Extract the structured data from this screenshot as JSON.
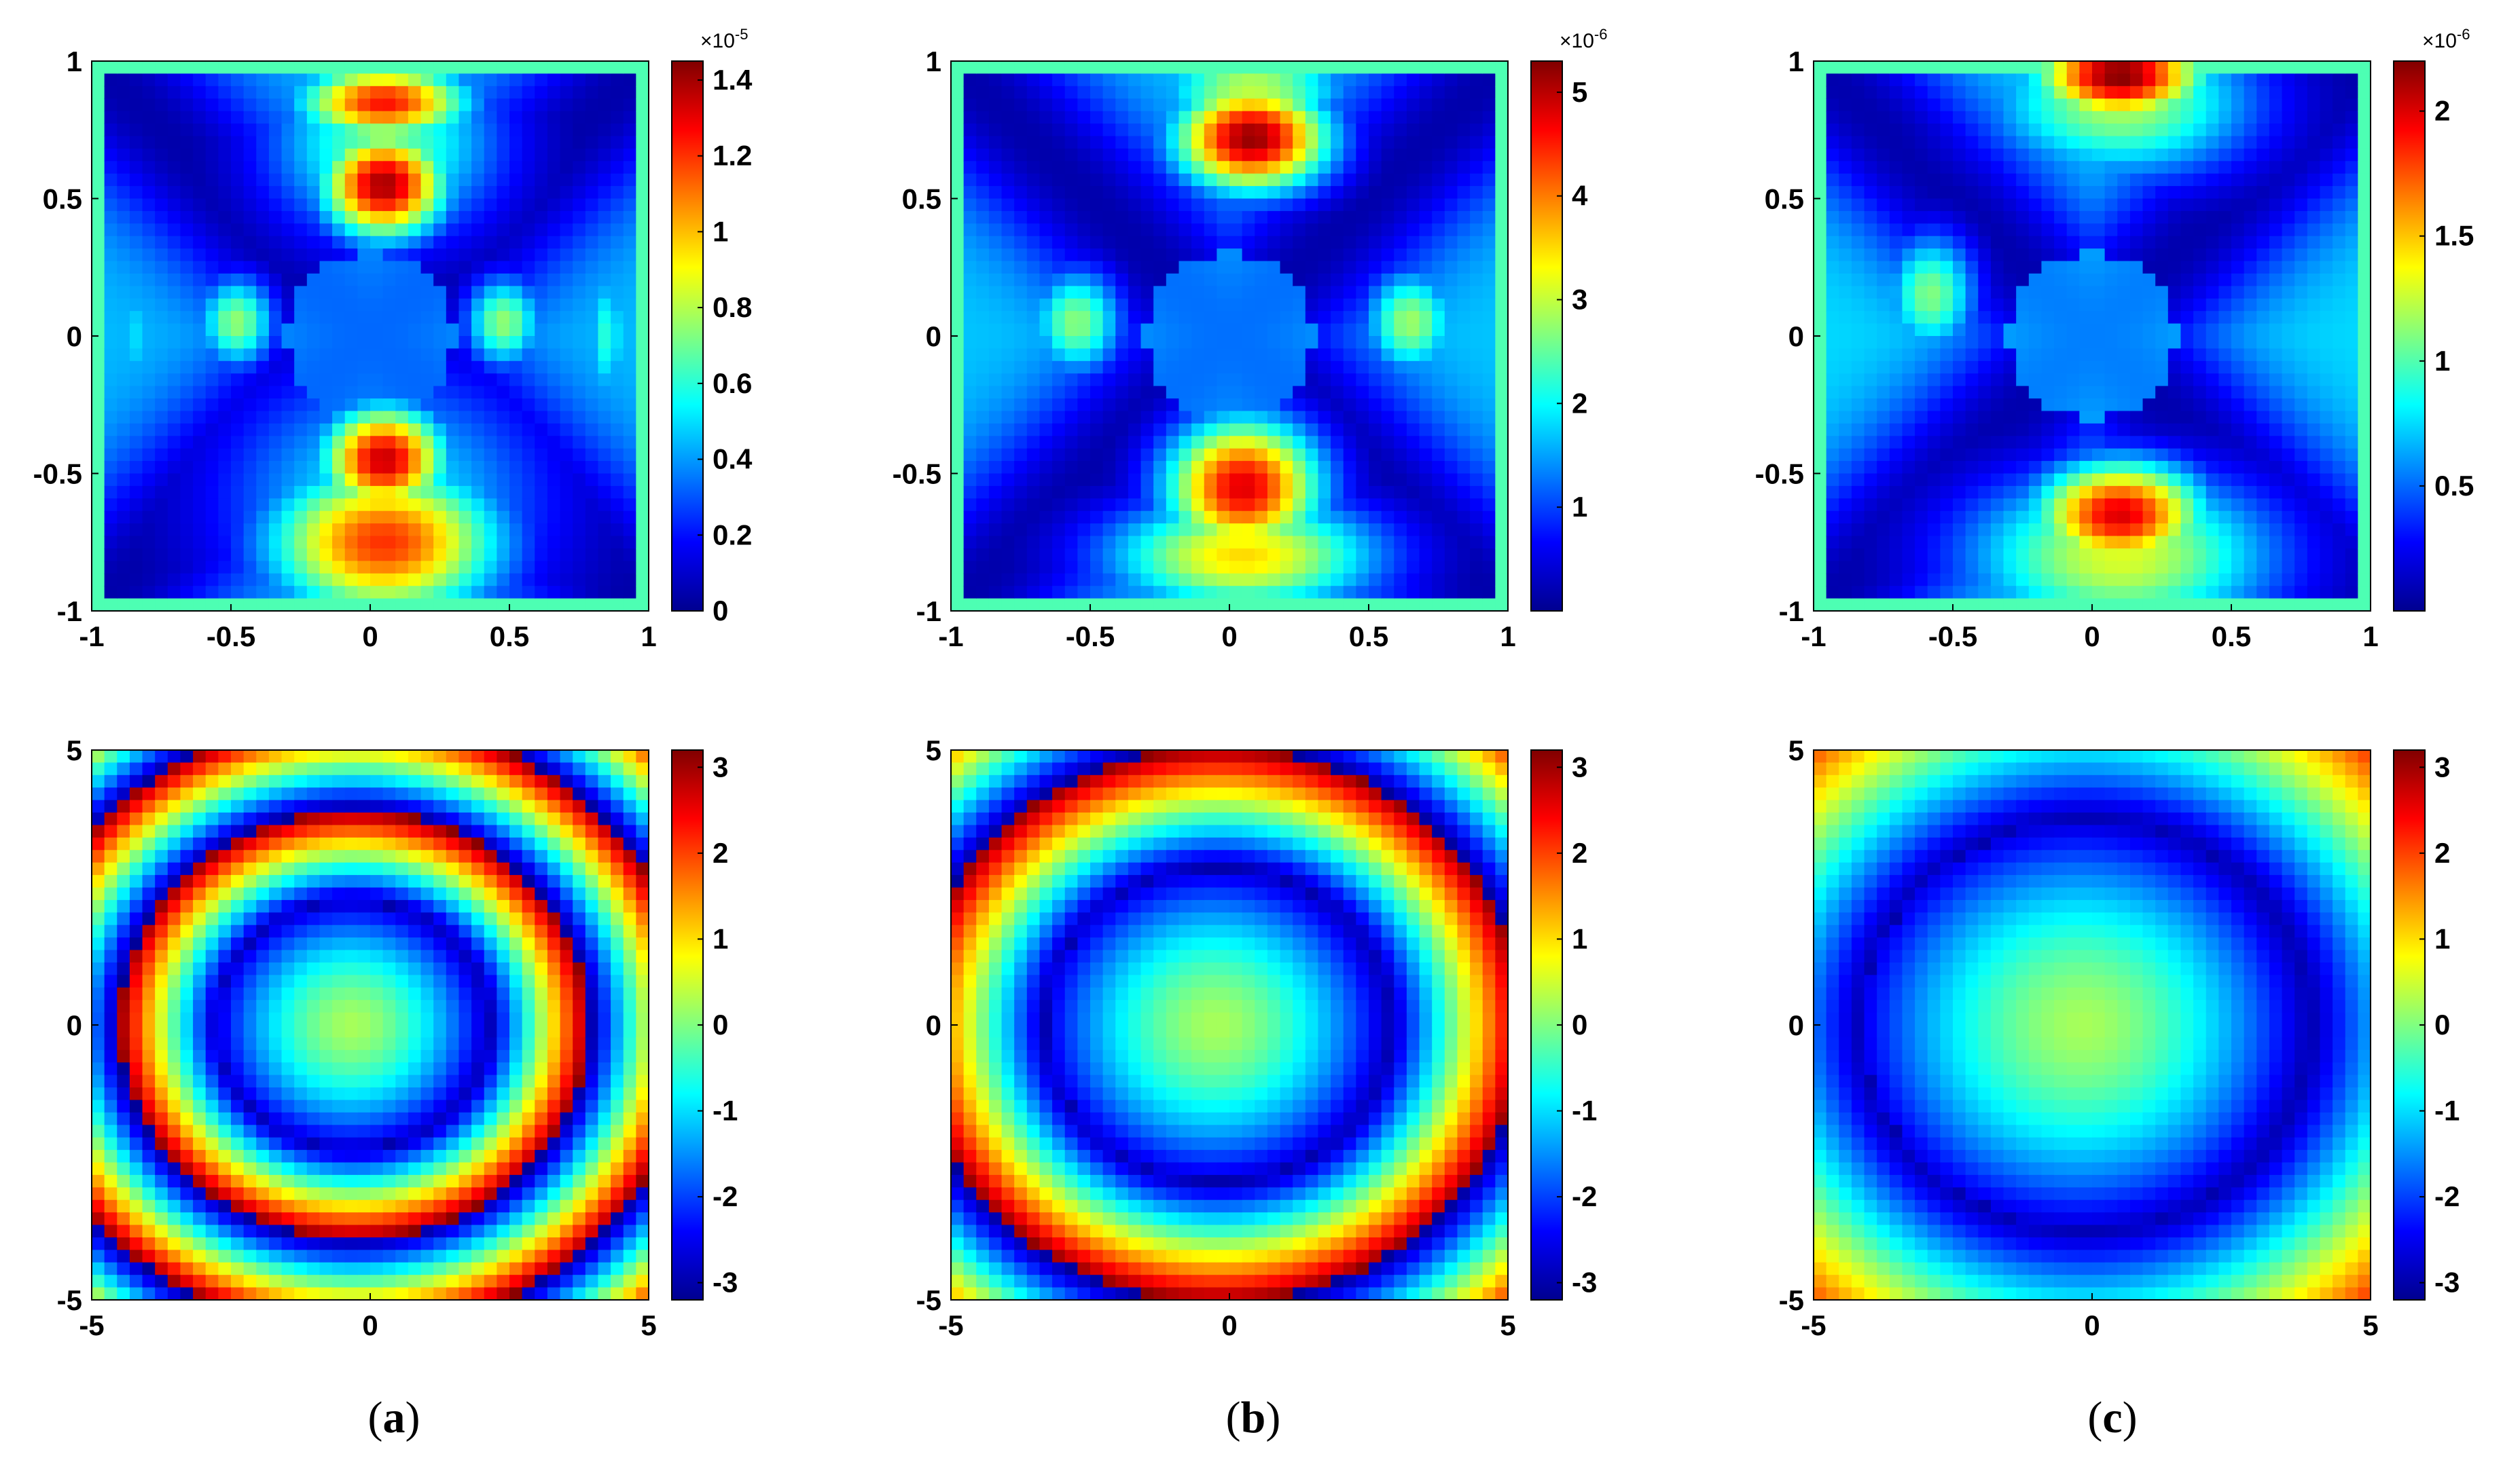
{
  "colormap": [
    "#00008f",
    "#0000ff",
    "#0080ff",
    "#00ffff",
    "#80ff80",
    "#ffff00",
    "#ff8000",
    "#ff0000",
    "#800000"
  ],
  "chart_data": [
    {
      "type": "heatmap",
      "panel": "a",
      "row": "top",
      "xlim": [
        -1,
        1
      ],
      "ylim": [
        -1,
        1
      ],
      "xticks": [
        "-1",
        "-0.5",
        "0",
        "0.5",
        "1"
      ],
      "yticks": [
        "1",
        "0.5",
        "0",
        "-0.5",
        "-1"
      ],
      "colorbar": {
        "range": [
          0,
          1.45
        ],
        "ticks": [
          0,
          0.2,
          0.4,
          0.6,
          0.8,
          1,
          1.2,
          1.4
        ],
        "labels": [
          "0",
          "0.2",
          "0.4",
          "0.6",
          "0.8",
          "1",
          "1.2",
          "1.4"
        ],
        "exponent": "-5"
      },
      "blobs": [
        {
          "x": 0.05,
          "y": 0.55,
          "sx": 0.16,
          "sy": 0.14,
          "v": 1.4
        },
        {
          "x": 0.05,
          "y": 0.85,
          "sx": 0.22,
          "sy": 0.1,
          "v": 1.25
        },
        {
          "x": 0.05,
          "y": 0.7,
          "sx": 0.3,
          "sy": 0.25,
          "v": 0.7
        },
        {
          "x": 0.05,
          "y": -0.45,
          "sx": 0.16,
          "sy": 0.14,
          "v": 1.35
        },
        {
          "x": 0.05,
          "y": -0.75,
          "sx": 0.3,
          "sy": 0.2,
          "v": 1.2
        },
        {
          "x": 0.05,
          "y": -0.6,
          "sx": 0.42,
          "sy": 0.35,
          "v": 0.55
        },
        {
          "x": -0.48,
          "y": 0.05,
          "sx": 0.1,
          "sy": 0.12,
          "v": 0.75
        },
        {
          "x": 0.48,
          "y": 0.05,
          "sx": 0.1,
          "sy": 0.12,
          "v": 0.75
        },
        {
          "x": 0.85,
          "y": 0.0,
          "sx": 0.06,
          "sy": 0.2,
          "v": 0.6
        },
        {
          "x": -0.85,
          "y": 0.0,
          "sx": 0.06,
          "sy": 0.2,
          "v": 0.5
        }
      ],
      "base": 0.45
    },
    {
      "type": "heatmap",
      "panel": "b",
      "row": "top",
      "xlim": [
        -1,
        1
      ],
      "ylim": [
        -1,
        1
      ],
      "xticks": [
        "-1",
        "-0.5",
        "0",
        "0.5",
        "1"
      ],
      "yticks": [
        "1",
        "0.5",
        "0",
        "-0.5",
        "-1"
      ],
      "colorbar": {
        "range": [
          0,
          5.3
        ],
        "ticks": [
          1,
          2,
          3,
          4,
          5
        ],
        "labels": [
          "1",
          "2",
          "3",
          "4",
          "5"
        ],
        "exponent": "-6"
      },
      "blobs": [
        {
          "x": 0.08,
          "y": 0.72,
          "sx": 0.2,
          "sy": 0.14,
          "v": 5.2
        },
        {
          "x": 0.08,
          "y": 0.9,
          "sx": 0.25,
          "sy": 0.1,
          "v": 3.0
        },
        {
          "x": 0.05,
          "y": -0.55,
          "sx": 0.2,
          "sy": 0.18,
          "v": 4.8
        },
        {
          "x": 0.05,
          "y": -0.8,
          "sx": 0.35,
          "sy": 0.15,
          "v": 3.5
        },
        {
          "x": -0.55,
          "y": 0.05,
          "sx": 0.12,
          "sy": 0.14,
          "v": 2.7
        },
        {
          "x": 0.65,
          "y": 0.05,
          "sx": 0.12,
          "sy": 0.14,
          "v": 2.8
        }
      ],
      "base": 1.7
    },
    {
      "type": "heatmap",
      "panel": "c",
      "row": "top",
      "xlim": [
        -1,
        1
      ],
      "ylim": [
        -1,
        1
      ],
      "xticks": [
        "-1",
        "-0.5",
        "0",
        "0.5",
        "1"
      ],
      "yticks": [
        "1",
        "0.5",
        "0",
        "-0.5",
        "-1"
      ],
      "colorbar": {
        "range": [
          0,
          2.2
        ],
        "ticks": [
          0.5,
          1,
          1.5,
          2
        ],
        "labels": [
          "0.5",
          "1",
          "1.5",
          "2"
        ],
        "exponent": "-6"
      },
      "blobs": [
        {
          "x": 0.1,
          "y": 0.95,
          "sx": 0.22,
          "sy": 0.12,
          "v": 2.2
        },
        {
          "x": 0.1,
          "y": 0.85,
          "sx": 0.35,
          "sy": 0.2,
          "v": 1.2
        },
        {
          "x": 0.1,
          "y": -0.65,
          "sx": 0.22,
          "sy": 0.14,
          "v": 2.0
        },
        {
          "x": 0.1,
          "y": -0.8,
          "sx": 0.4,
          "sy": 0.22,
          "v": 1.3
        },
        {
          "x": -0.58,
          "y": 0.15,
          "sx": 0.12,
          "sy": 0.16,
          "v": 1.1
        }
      ],
      "base": 0.75
    },
    {
      "type": "heatmap",
      "panel": "a",
      "row": "bottom",
      "xlim": [
        -5,
        5
      ],
      "ylim": [
        -5,
        5
      ],
      "xticks": [
        "-5",
        "0",
        "5"
      ],
      "yticks": [
        "5",
        "0",
        "-5"
      ],
      "colorbar": {
        "range": [
          -3.2,
          3.2
        ],
        "ticks": [
          -3,
          -2,
          -1,
          0,
          1,
          2,
          3
        ],
        "labels": [
          "-3",
          "-2",
          "-1",
          "0",
          "1",
          "2",
          "3"
        ]
      },
      "phase": {
        "k": 3.2,
        "inner": 2.6,
        "cx": -0.3
      }
    },
    {
      "type": "heatmap",
      "panel": "b",
      "row": "bottom",
      "xlim": [
        -5,
        5
      ],
      "ylim": [
        -5,
        5
      ],
      "xticks": [
        "-5",
        "0",
        "5"
      ],
      "yticks": [
        "5",
        "0",
        "-5"
      ],
      "colorbar": {
        "range": [
          -3.2,
          3.2
        ],
        "ticks": [
          -3,
          -2,
          -1,
          0,
          1,
          2,
          3
        ],
        "labels": [
          "-3",
          "-2",
          "-1",
          "0",
          "1",
          "2",
          "3"
        ]
      },
      "phase": {
        "k": 2.4,
        "inner": 3.3,
        "cx": -0.2
      }
    },
    {
      "type": "heatmap",
      "panel": "c",
      "row": "bottom",
      "xlim": [
        -5,
        5
      ],
      "ylim": [
        -5,
        5
      ],
      "xticks": [
        "-5",
        "0",
        "5"
      ],
      "yticks": [
        "5",
        "0",
        "-5"
      ],
      "colorbar": {
        "range": [
          -3.2,
          3.2
        ],
        "ticks": [
          -3,
          -2,
          -1,
          0,
          1,
          2,
          3
        ],
        "labels": [
          "-3",
          "-2",
          "-1",
          "0",
          "1",
          "2",
          "3"
        ]
      },
      "phase": {
        "k": 1.4,
        "inner": 4.3,
        "cx": -0.1
      }
    }
  ],
  "captions": [
    {
      "open": "(",
      "letter": "a",
      "close": ")"
    },
    {
      "open": "(",
      "letter": "b",
      "close": ")"
    },
    {
      "open": "(",
      "letter": "c",
      "close": ")"
    }
  ]
}
